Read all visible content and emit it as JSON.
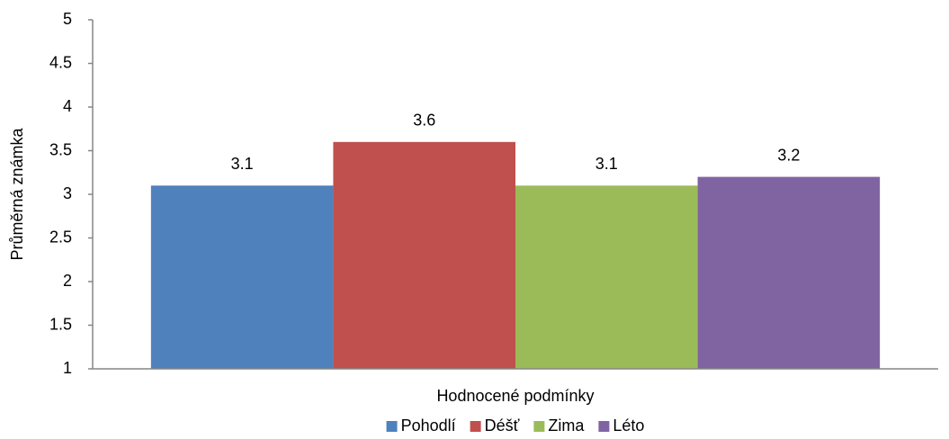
{
  "chart_data": {
    "type": "bar",
    "x_label": "Hodnocené podmínky",
    "y_label": "Průměrná známka",
    "categories": [
      null
    ],
    "series": [
      {
        "name": "Pohodlí",
        "color": "#4f81bd",
        "values": [
          3.1
        ]
      },
      {
        "name": "Déšť",
        "color": "#c0504d",
        "values": [
          3.6
        ]
      },
      {
        "name": "Zima",
        "color": "#9bbb59",
        "values": [
          3.1
        ]
      },
      {
        "name": "Léto",
        "color": "#8064a2",
        "values": [
          3.2
        ]
      }
    ],
    "ylim": [
      1,
      5
    ],
    "yticks": [
      1,
      1.5,
      2,
      2.5,
      3,
      3.5,
      4,
      4.5,
      5
    ],
    "grid": false,
    "legend": "bottom",
    "data_labels": true
  }
}
